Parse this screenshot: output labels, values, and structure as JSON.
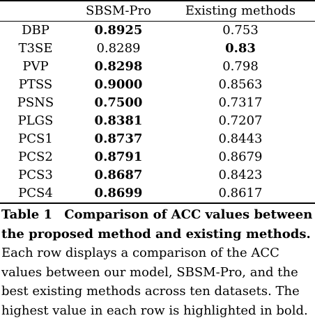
{
  "table": {
    "headers": [
      "",
      "SBSM-Pro",
      "Existing methods"
    ],
    "rows": [
      {
        "dataset": "DBP",
        "sbsm": "0.8925",
        "existing": "0.753",
        "best": "sbsm"
      },
      {
        "dataset": "T3SE",
        "sbsm": "0.8289",
        "existing": "0.83",
        "best": "existing"
      },
      {
        "dataset": "PVP",
        "sbsm": "0.8298",
        "existing": "0.798",
        "best": "sbsm"
      },
      {
        "dataset": "PTSS",
        "sbsm": "0.9000",
        "existing": "0.8563",
        "best": "sbsm"
      },
      {
        "dataset": "PSNS",
        "sbsm": "0.7500",
        "existing": "0.7317",
        "best": "sbsm"
      },
      {
        "dataset": "PLGS",
        "sbsm": "0.8381",
        "existing": "0.7207",
        "best": "sbsm"
      },
      {
        "dataset": "PCS1",
        "sbsm": "0.8737",
        "existing": "0.8443",
        "best": "sbsm"
      },
      {
        "dataset": "PCS2",
        "sbsm": "0.8791",
        "existing": "0.8679",
        "best": "sbsm"
      },
      {
        "dataset": "PCS3",
        "sbsm": "0.8687",
        "existing": "0.8423",
        "best": "sbsm"
      },
      {
        "dataset": "PCS4",
        "sbsm": "0.8699",
        "existing": "0.8617",
        "best": "sbsm"
      }
    ]
  },
  "caption": {
    "label": "Table 1",
    "title": "Comparison of ACC values between the proposed method and existing methods.",
    "body": "Each row displays a comparison of the ACC values between our model, SBSM-Pro, and the best existing methods across ten datasets. The highest value in each row is highlighted in bold."
  }
}
